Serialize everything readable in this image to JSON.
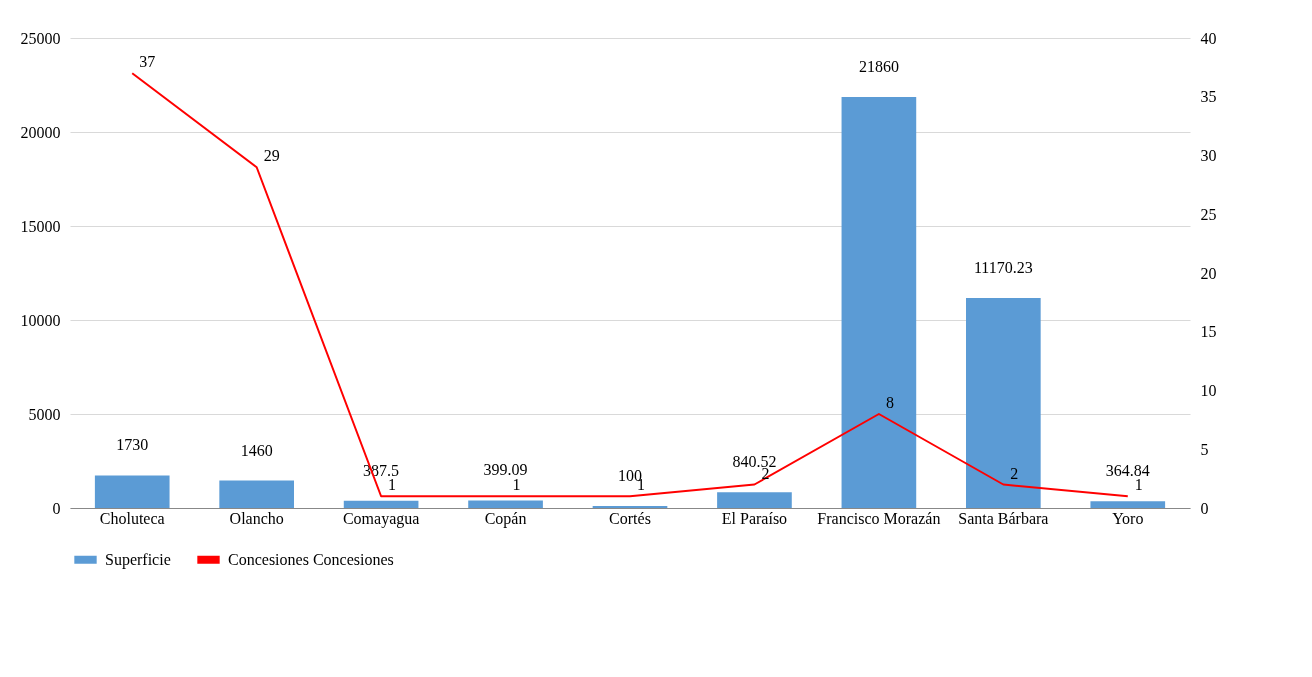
{
  "chart_data": {
    "type": "bar",
    "categories": [
      "Choluteca",
      "Olancho",
      "Comayagua",
      "Copán",
      "Cortés",
      "El Paraíso",
      "Francisco Morazán",
      "Santa Bárbara",
      "Yoro"
    ],
    "series": [
      {
        "name": "Superficie",
        "color": "#5b9bd5",
        "values": [
          1730,
          1460,
          387.5,
          399.09,
          100,
          840.52,
          21860,
          11170.23,
          364.84
        ]
      },
      {
        "name": "Concesiones Concesiones",
        "type": "line",
        "axis": "y2",
        "color": "#ff0000",
        "values": [
          37,
          29,
          1,
          1,
          1,
          2,
          8,
          2,
          1
        ]
      }
    ],
    "ylim": [
      0,
      25000
    ],
    "yticks": [
      0,
      5000,
      10000,
      15000,
      20000,
      25000
    ],
    "y2lim": [
      0,
      40
    ],
    "y2ticks": [
      0,
      5,
      10,
      15,
      20,
      25,
      30,
      35,
      40
    ],
    "grid": "y",
    "legend": "bottom",
    "data_labels": true,
    "marker": "none"
  }
}
